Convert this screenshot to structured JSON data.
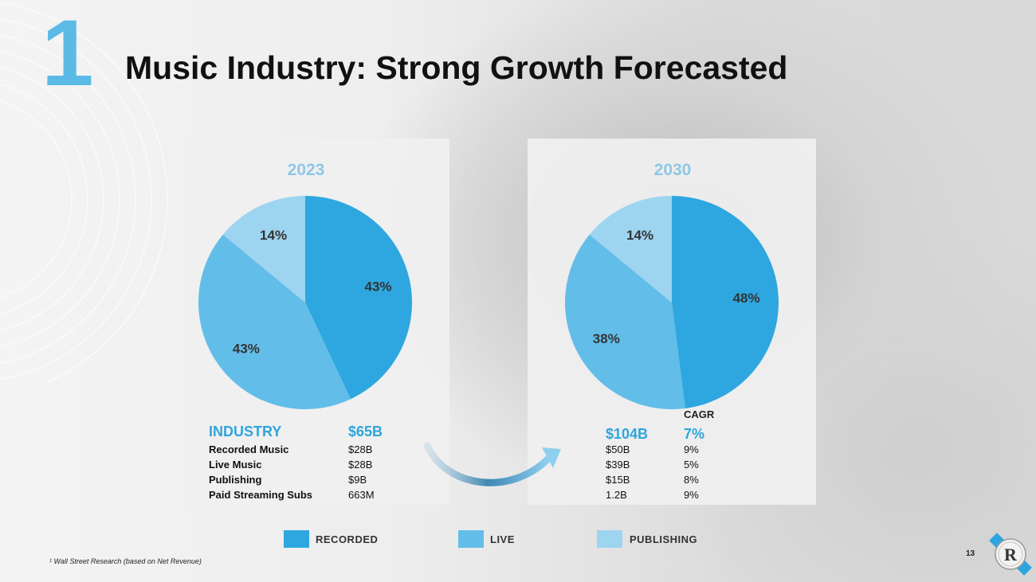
{
  "slide": {
    "number": "1",
    "title": "Music Industry: Strong Growth Forecasted",
    "page": "13"
  },
  "colors": {
    "recorded": "#2ea7e0",
    "live": "#62bde9",
    "publishing": "#9dd4f0",
    "accent": "#2fa5dd"
  },
  "chart_data": [
    {
      "type": "pie",
      "title": "2023",
      "categories": [
        "RECORDED",
        "LIVE",
        "PUBLISHING"
      ],
      "values": [
        43,
        43,
        14
      ],
      "labels": [
        "43%",
        "43%",
        "14%"
      ]
    },
    {
      "type": "pie",
      "title": "2030",
      "categories": [
        "RECORDED",
        "LIVE",
        "PUBLISHING"
      ],
      "values": [
        48,
        38,
        14
      ],
      "labels": [
        "48%",
        "38%",
        "14%"
      ]
    }
  ],
  "table": {
    "header": {
      "label": "INDUSTRY",
      "y2023": "$65B",
      "y2030": "$104B",
      "cagr": "7%"
    },
    "cagr_label": "CAGR",
    "rows": [
      {
        "label": "Recorded Music",
        "y2023": "$28B",
        "y2030": "$50B",
        "cagr": "9%"
      },
      {
        "label": "Live Music",
        "y2023": "$28B",
        "y2030": "$39B",
        "cagr": "5%"
      },
      {
        "label": "Publishing",
        "y2023": "$9B",
        "y2030": "$15B",
        "cagr": "8%"
      },
      {
        "label": "Paid Streaming Subs",
        "y2023": "663M",
        "y2030": "1.2B",
        "cagr": "9%"
      }
    ]
  },
  "legend": [
    "RECORDED",
    "LIVE",
    "PUBLISHING"
  ],
  "footnote": "¹ Wall Street Research (based on Net Revenue)"
}
